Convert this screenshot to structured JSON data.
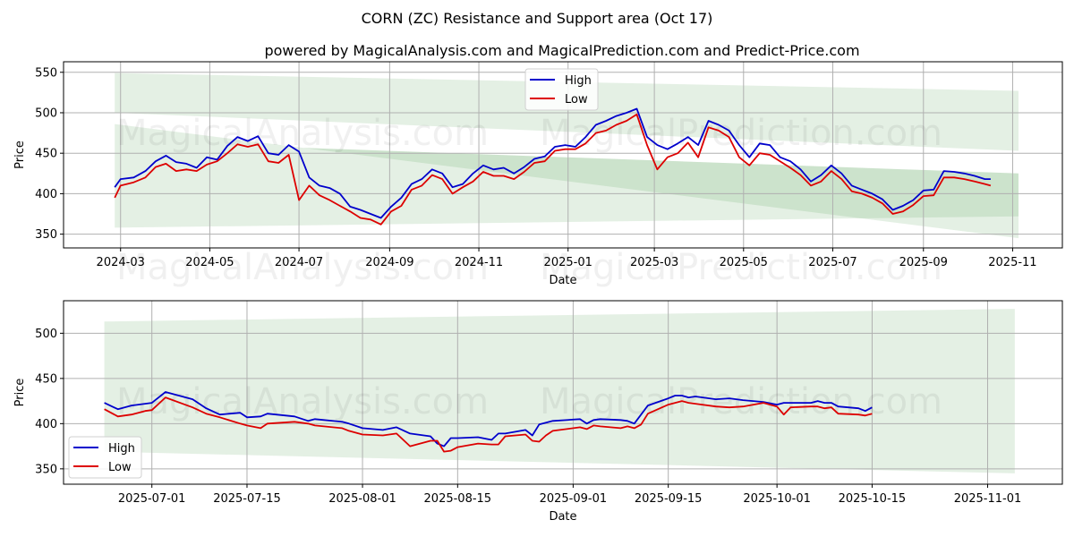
{
  "chart_data": [
    {
      "type": "line",
      "title": "CORN (ZC) Resistance and Support area (Oct 17)",
      "subtitle": "powered by MagicalAnalysis.com and MagicalPrediction.com and Predict-Price.com",
      "xlabel": "Date",
      "ylabel": "Price",
      "ylim": [
        333,
        563
      ],
      "xlim": [
        "2024-01-22",
        "2025-12-05"
      ],
      "yticks": [
        350,
        400,
        450,
        500,
        550
      ],
      "xticks": [
        "2024-03",
        "2024-05",
        "2024-07",
        "2024-09",
        "2024-11",
        "2025-01",
        "2025-03",
        "2025-05",
        "2025-07",
        "2025-09",
        "2025-11"
      ],
      "grid": true,
      "legend": {
        "placement": "top-center",
        "entries": [
          "High",
          "Low"
        ]
      },
      "watermarks": [
        "MagicalAnalysis.com",
        "MagicalPrediction.com"
      ],
      "bands": [
        {
          "name": "resistance-band",
          "start": "2024-02-26",
          "end": "2025-11-05",
          "upper": [
            549,
            527
          ],
          "lower": [
            500,
            453
          ]
        },
        {
          "name": "resistance-band-2",
          "start": "2024-02-26",
          "end": "2025-11-05",
          "upper": [
            465,
            425
          ],
          "lower": [
            486,
            345
          ]
        },
        {
          "name": "support-band",
          "start": "2024-02-26",
          "end": "2025-11-05",
          "upper": [
            465,
            425
          ],
          "lower": [
            358,
            372
          ]
        }
      ],
      "series": [
        {
          "name": "High",
          "color": "#0000cc",
          "x": [
            "2024-02-26",
            "2024-03-01",
            "2024-03-10",
            "2024-03-18",
            "2024-03-25",
            "2024-04-01",
            "2024-04-08",
            "2024-04-15",
            "2024-04-22",
            "2024-04-29",
            "2024-05-06",
            "2024-05-13",
            "2024-05-20",
            "2024-05-27",
            "2024-06-03",
            "2024-06-10",
            "2024-06-17",
            "2024-06-24",
            "2024-07-01",
            "2024-07-08",
            "2024-07-15",
            "2024-07-22",
            "2024-07-29",
            "2024-08-05",
            "2024-08-12",
            "2024-08-19",
            "2024-08-26",
            "2024-09-02",
            "2024-09-09",
            "2024-09-16",
            "2024-09-23",
            "2024-09-30",
            "2024-10-07",
            "2024-10-14",
            "2024-10-21",
            "2024-10-28",
            "2024-11-04",
            "2024-11-11",
            "2024-11-18",
            "2024-11-25",
            "2024-12-02",
            "2024-12-09",
            "2024-12-16",
            "2024-12-23",
            "2024-12-30",
            "2025-01-06",
            "2025-01-13",
            "2025-01-20",
            "2025-01-27",
            "2025-02-03",
            "2025-02-10",
            "2025-02-17",
            "2025-02-24",
            "2025-03-03",
            "2025-03-10",
            "2025-03-17",
            "2025-03-24",
            "2025-03-31",
            "2025-04-07",
            "2025-04-14",
            "2025-04-21",
            "2025-04-28",
            "2025-05-05",
            "2025-05-12",
            "2025-05-19",
            "2025-05-26",
            "2025-06-02",
            "2025-06-09",
            "2025-06-16",
            "2025-06-23",
            "2025-06-30",
            "2025-07-07",
            "2025-07-14",
            "2025-07-21",
            "2025-07-28",
            "2025-08-04",
            "2025-08-11",
            "2025-08-18",
            "2025-08-25",
            "2025-09-01",
            "2025-09-08",
            "2025-09-15",
            "2025-09-22",
            "2025-09-29",
            "2025-10-06",
            "2025-10-13",
            "2025-10-17"
          ],
          "values": [
            408,
            418,
            420,
            428,
            440,
            447,
            439,
            437,
            432,
            445,
            442,
            459,
            470,
            465,
            471,
            450,
            448,
            460,
            452,
            420,
            410,
            407,
            400,
            384,
            380,
            375,
            370,
            384,
            395,
            412,
            418,
            430,
            425,
            408,
            412,
            425,
            435,
            430,
            432,
            425,
            433,
            443,
            446,
            458,
            460,
            458,
            470,
            485,
            490,
            496,
            500,
            505,
            470,
            460,
            455,
            462,
            470,
            460,
            490,
            485,
            478,
            460,
            445,
            462,
            460,
            445,
            440,
            430,
            415,
            423,
            435,
            425,
            410,
            405,
            400,
            393,
            380,
            385,
            392,
            404,
            405,
            428,
            427,
            425,
            422,
            418,
            418
          ]
        },
        {
          "name": "Low",
          "color": "#dd0000",
          "x": [
            "2024-02-26",
            "2024-03-01",
            "2024-03-10",
            "2024-03-18",
            "2024-03-25",
            "2024-04-01",
            "2024-04-08",
            "2024-04-15",
            "2024-04-22",
            "2024-04-29",
            "2024-05-06",
            "2024-05-13",
            "2024-05-20",
            "2024-05-27",
            "2024-06-03",
            "2024-06-10",
            "2024-06-17",
            "2024-06-24",
            "2024-07-01",
            "2024-07-08",
            "2024-07-15",
            "2024-07-22",
            "2024-07-29",
            "2024-08-05",
            "2024-08-12",
            "2024-08-19",
            "2024-08-26",
            "2024-09-02",
            "2024-09-09",
            "2024-09-16",
            "2024-09-23",
            "2024-09-30",
            "2024-10-07",
            "2024-10-14",
            "2024-10-21",
            "2024-10-28",
            "2024-11-04",
            "2024-11-11",
            "2024-11-18",
            "2024-11-25",
            "2024-12-02",
            "2024-12-09",
            "2024-12-16",
            "2024-12-23",
            "2024-12-30",
            "2025-01-06",
            "2025-01-13",
            "2025-01-20",
            "2025-01-27",
            "2025-02-03",
            "2025-02-10",
            "2025-02-17",
            "2025-02-24",
            "2025-03-03",
            "2025-03-10",
            "2025-03-17",
            "2025-03-24",
            "2025-03-31",
            "2025-04-07",
            "2025-04-14",
            "2025-04-21",
            "2025-04-28",
            "2025-05-05",
            "2025-05-12",
            "2025-05-19",
            "2025-05-26",
            "2025-06-02",
            "2025-06-09",
            "2025-06-16",
            "2025-06-23",
            "2025-06-30",
            "2025-07-07",
            "2025-07-14",
            "2025-07-21",
            "2025-07-28",
            "2025-08-04",
            "2025-08-11",
            "2025-08-18",
            "2025-08-25",
            "2025-09-01",
            "2025-09-08",
            "2025-09-15",
            "2025-09-22",
            "2025-09-29",
            "2025-10-06",
            "2025-10-13",
            "2025-10-17"
          ],
          "values": [
            395,
            410,
            414,
            420,
            433,
            437,
            428,
            430,
            428,
            436,
            440,
            450,
            461,
            458,
            461,
            440,
            438,
            448,
            392,
            410,
            398,
            392,
            385,
            378,
            370,
            368,
            362,
            378,
            385,
            405,
            410,
            423,
            418,
            400,
            408,
            415,
            427,
            422,
            422,
            418,
            427,
            438,
            440,
            453,
            455,
            455,
            462,
            475,
            478,
            485,
            490,
            498,
            460,
            430,
            445,
            450,
            463,
            445,
            482,
            478,
            470,
            445,
            435,
            450,
            448,
            440,
            432,
            423,
            410,
            415,
            428,
            418,
            403,
            400,
            395,
            388,
            375,
            378,
            386,
            397,
            398,
            420,
            420,
            418,
            415,
            412,
            410
          ]
        }
      ]
    },
    {
      "type": "line",
      "xlabel": "Date",
      "ylabel": "Price",
      "ylim": [
        333,
        536
      ],
      "xlim": [
        "2025-06-18",
        "2025-11-12"
      ],
      "yticks": [
        350,
        400,
        450,
        500
      ],
      "xticks": [
        "2025-07-01",
        "2025-07-15",
        "2025-08-01",
        "2025-08-15",
        "2025-09-01",
        "2025-09-15",
        "2025-10-01",
        "2025-10-15",
        "2025-11-01"
      ],
      "grid": true,
      "legend": {
        "placement": "bottom-left",
        "entries": [
          "High",
          "Low"
        ]
      },
      "watermarks": [
        "MagicalAnalysis.com",
        "MagicalPrediction.com"
      ],
      "bands": [
        {
          "name": "resistance-band",
          "start": "2025-06-24",
          "end": "2025-11-05",
          "upper": [
            513,
            527
          ],
          "lower": [
            440,
            425
          ]
        },
        {
          "name": "middle-band",
          "start": "2025-06-24",
          "end": "2025-11-05",
          "upper": [
            440,
            425
          ],
          "lower": [
            388,
            372
          ]
        },
        {
          "name": "support-band",
          "start": "2025-06-24",
          "end": "2025-11-05",
          "upper": [
            388,
            372
          ],
          "lower": [
            369,
            345
          ]
        }
      ],
      "series": [
        {
          "name": "High",
          "color": "#0000cc",
          "x": [
            "2025-06-24",
            "2025-06-26",
            "2025-06-28",
            "2025-06-30",
            "2025-07-01",
            "2025-07-03",
            "2025-07-07",
            "2025-07-09",
            "2025-07-11",
            "2025-07-14",
            "2025-07-15",
            "2025-07-17",
            "2025-07-18",
            "2025-07-22",
            "2025-07-24",
            "2025-07-25",
            "2025-07-29",
            "2025-07-30",
            "2025-08-01",
            "2025-08-04",
            "2025-08-06",
            "2025-08-08",
            "2025-08-11",
            "2025-08-12",
            "2025-08-13",
            "2025-08-14",
            "2025-08-15",
            "2025-08-18",
            "2025-08-20",
            "2025-08-21",
            "2025-08-22",
            "2025-08-25",
            "2025-08-26",
            "2025-08-27",
            "2025-08-28",
            "2025-08-29",
            "2025-09-02",
            "2025-09-03",
            "2025-09-04",
            "2025-09-05",
            "2025-09-08",
            "2025-09-09",
            "2025-09-10",
            "2025-09-11",
            "2025-09-12",
            "2025-09-15",
            "2025-09-16",
            "2025-09-17",
            "2025-09-18",
            "2025-09-19",
            "2025-09-22",
            "2025-09-24",
            "2025-09-26",
            "2025-09-29",
            "2025-10-01",
            "2025-10-02",
            "2025-10-03",
            "2025-10-06",
            "2025-10-07",
            "2025-10-08",
            "2025-10-09",
            "2025-10-10",
            "2025-10-13",
            "2025-10-14",
            "2025-10-15"
          ],
          "values": [
            423,
            416,
            420,
            422,
            423,
            435,
            427,
            417,
            410,
            412,
            407,
            408,
            411,
            408,
            403,
            405,
            402,
            400,
            395,
            393,
            396,
            389,
            386,
            378,
            375,
            384,
            384,
            385,
            382,
            389,
            389,
            393,
            387,
            399,
            401,
            403,
            405,
            400,
            404,
            405,
            404,
            403,
            400,
            410,
            420,
            428,
            431,
            431,
            429,
            430,
            427,
            428,
            426,
            424,
            421,
            423,
            423,
            423,
            425,
            423,
            423,
            419,
            417,
            414,
            418
          ]
        },
        {
          "name": "Low",
          "color": "#dd0000",
          "x": [
            "2025-06-24",
            "2025-06-26",
            "2025-06-28",
            "2025-06-30",
            "2025-07-01",
            "2025-07-03",
            "2025-07-07",
            "2025-07-09",
            "2025-07-11",
            "2025-07-14",
            "2025-07-15",
            "2025-07-17",
            "2025-07-18",
            "2025-07-22",
            "2025-07-24",
            "2025-07-25",
            "2025-07-29",
            "2025-07-30",
            "2025-08-01",
            "2025-08-04",
            "2025-08-06",
            "2025-08-08",
            "2025-08-11",
            "2025-08-12",
            "2025-08-13",
            "2025-08-14",
            "2025-08-15",
            "2025-08-18",
            "2025-08-20",
            "2025-08-21",
            "2025-08-22",
            "2025-08-25",
            "2025-08-26",
            "2025-08-27",
            "2025-08-28",
            "2025-08-29",
            "2025-09-02",
            "2025-09-03",
            "2025-09-04",
            "2025-09-05",
            "2025-09-08",
            "2025-09-09",
            "2025-09-10",
            "2025-09-11",
            "2025-09-12",
            "2025-09-15",
            "2025-09-16",
            "2025-09-17",
            "2025-09-18",
            "2025-09-19",
            "2025-09-22",
            "2025-09-24",
            "2025-09-26",
            "2025-09-29",
            "2025-10-01",
            "2025-10-02",
            "2025-10-03",
            "2025-10-06",
            "2025-10-07",
            "2025-10-08",
            "2025-10-09",
            "2025-10-10",
            "2025-10-13",
            "2025-10-14",
            "2025-10-15"
          ],
          "values": [
            416,
            408,
            410,
            414,
            415,
            429,
            418,
            411,
            407,
            400,
            398,
            395,
            400,
            402,
            400,
            398,
            395,
            392,
            388,
            387,
            389,
            375,
            381,
            381,
            369,
            370,
            374,
            378,
            377,
            377,
            386,
            388,
            381,
            380,
            387,
            392,
            396,
            394,
            398,
            397,
            395,
            397,
            395,
            399,
            411,
            421,
            423,
            425,
            423,
            422,
            419,
            418,
            419,
            423,
            419,
            410,
            418,
            419,
            419,
            417,
            418,
            411,
            410,
            409,
            411
          ]
        }
      ]
    }
  ]
}
